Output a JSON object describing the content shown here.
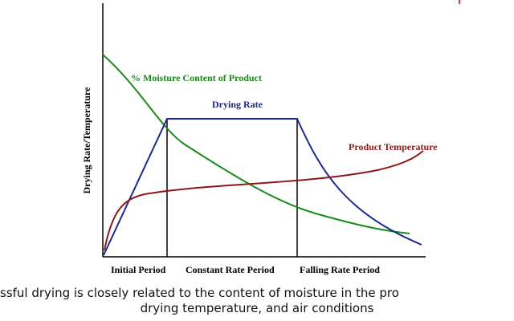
{
  "diagram": {
    "y_axis_label": "Drying Rate/Temperature",
    "curves": {
      "moisture": "% Moisture Content of Product",
      "drying_rate": "Drying Rate",
      "temperature": "Product Temperature"
    },
    "periods": [
      "Initial Period",
      "Constant Rate Period",
      "Falling Rate Period"
    ],
    "caption": [
      "ssful drying is closely related to the content of moisture in the pro",
      "drying temperature, and air conditions"
    ]
  }
}
